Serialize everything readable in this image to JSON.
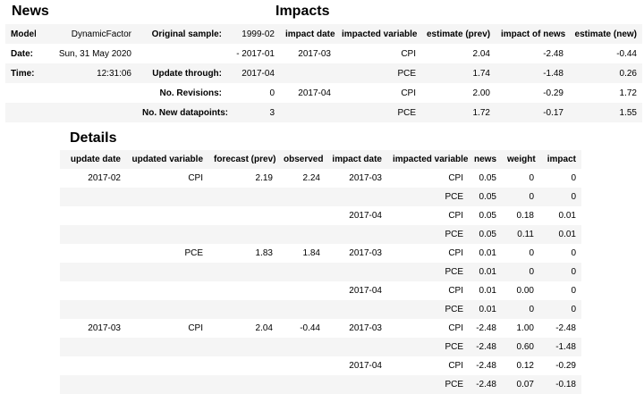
{
  "colors": {
    "stripe": "#f5f5f5",
    "text": "#000000"
  },
  "news": {
    "title": "News",
    "rows": [
      [
        "Model:",
        "DynamicFactor",
        "Original sample:",
        "1999-02"
      ],
      [
        "Date:",
        "Sun, 31 May 2020",
        "",
        "- 2017-01"
      ],
      [
        "Time:",
        "12:31:06",
        "Update through:",
        "2017-04"
      ],
      [
        "",
        "",
        "No. Revisions:",
        "0"
      ],
      [
        "",
        "",
        "No. New datapoints:",
        "3"
      ]
    ]
  },
  "impacts": {
    "title": "Impacts",
    "columns": [
      "impact date",
      "impacted variable",
      "estimate (prev)",
      "impact of news",
      "estimate (new)"
    ],
    "rows": [
      [
        "2017-03",
        "CPI",
        "2.04",
        "-2.48",
        "-0.44"
      ],
      [
        "",
        "PCE",
        "1.74",
        "-1.48",
        "0.26"
      ],
      [
        "2017-04",
        "CPI",
        "2.00",
        "-0.29",
        "1.72"
      ],
      [
        "",
        "PCE",
        "1.72",
        "-0.17",
        "1.55"
      ]
    ]
  },
  "details": {
    "title": "Details",
    "columns": [
      "update date",
      "updated variable",
      "forecast (prev)",
      "observed",
      "impact date",
      "impacted variable",
      "news",
      "weight",
      "impact"
    ],
    "rows": [
      [
        "2017-02",
        "CPI",
        "2.19",
        "2.24",
        "2017-03",
        "CPI",
        "0.05",
        "0",
        "0"
      ],
      [
        "",
        "",
        "",
        "",
        "",
        "PCE",
        "0.05",
        "0",
        "0"
      ],
      [
        "",
        "",
        "",
        "",
        "2017-04",
        "CPI",
        "0.05",
        "0.18",
        "0.01"
      ],
      [
        "",
        "",
        "",
        "",
        "",
        "PCE",
        "0.05",
        "0.11",
        "0.01"
      ],
      [
        "",
        "PCE",
        "1.83",
        "1.84",
        "2017-03",
        "CPI",
        "0.01",
        "0",
        "0"
      ],
      [
        "",
        "",
        "",
        "",
        "",
        "PCE",
        "0.01",
        "0",
        "0"
      ],
      [
        "",
        "",
        "",
        "",
        "2017-04",
        "CPI",
        "0.01",
        "0.00",
        "0"
      ],
      [
        "",
        "",
        "",
        "",
        "",
        "PCE",
        "0.01",
        "0",
        "0"
      ],
      [
        "2017-03",
        "CPI",
        "2.04",
        "-0.44",
        "2017-03",
        "CPI",
        "-2.48",
        "1.00",
        "-2.48"
      ],
      [
        "",
        "",
        "",
        "",
        "",
        "PCE",
        "-2.48",
        "0.60",
        "-1.48"
      ],
      [
        "",
        "",
        "",
        "",
        "2017-04",
        "CPI",
        "-2.48",
        "0.12",
        "-0.29"
      ],
      [
        "",
        "",
        "",
        "",
        "",
        "PCE",
        "-2.48",
        "0.07",
        "-0.18"
      ]
    ]
  }
}
